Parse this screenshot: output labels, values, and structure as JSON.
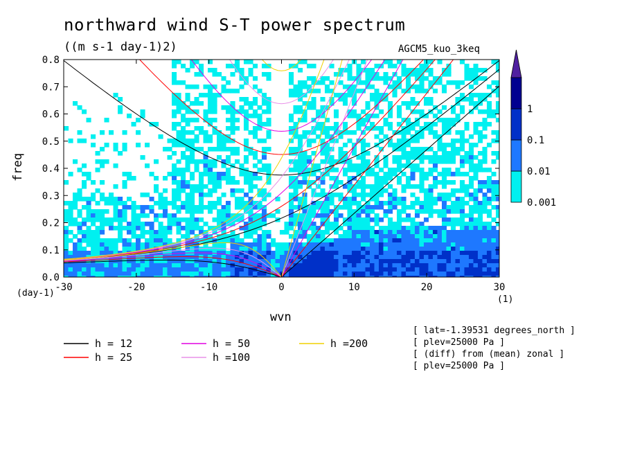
{
  "chart_data": {
    "type": "heatmap",
    "title": "northward wind S-T power spectrum",
    "subtitle": "((m s-1 day-1)2)",
    "run_label": "AGCM5_kuo_3keq",
    "xlabel": "wvn",
    "ylabel": "freq",
    "x_unit": "(1)",
    "y_unit": "(day-1)",
    "xlim": [
      -30,
      30
    ],
    "ylim": [
      0,
      0.8
    ],
    "x_ticks": [
      "-30",
      "-20",
      "-10",
      "0",
      "10",
      "20",
      "30"
    ],
    "y_ticks": [
      "0.0",
      "0.1",
      "0.2",
      "0.3",
      "0.4",
      "0.5",
      "0.6",
      "0.7",
      "0.8"
    ],
    "colorbar": {
      "levels": [
        "0.001",
        "0.01",
        "0.1",
        "1"
      ],
      "colors": [
        "#00f0f0",
        "#1e78ff",
        "#0030c8",
        "#000090",
        "#5020a0"
      ]
    },
    "dispersion_curves": [
      {
        "label": "h = 12",
        "h": 12,
        "color": "#000000"
      },
      {
        "label": "h = 25",
        "h": 25,
        "color": "#ff0000"
      },
      {
        "label": "h = 50",
        "h": 50,
        "color": "#e000e0"
      },
      {
        "label": "h =100",
        "h": 100,
        "color": "#e890e8"
      },
      {
        "label": "h =200",
        "h": 200,
        "color": "#f0d000"
      }
    ],
    "info_lines": [
      "[ lat=-1.39531 degrees_north ]",
      "[ plev=25000 Pa ]",
      "[ (diff) from (mean) zonal ]",
      "[ plev=25000 Pa ]"
    ]
  }
}
